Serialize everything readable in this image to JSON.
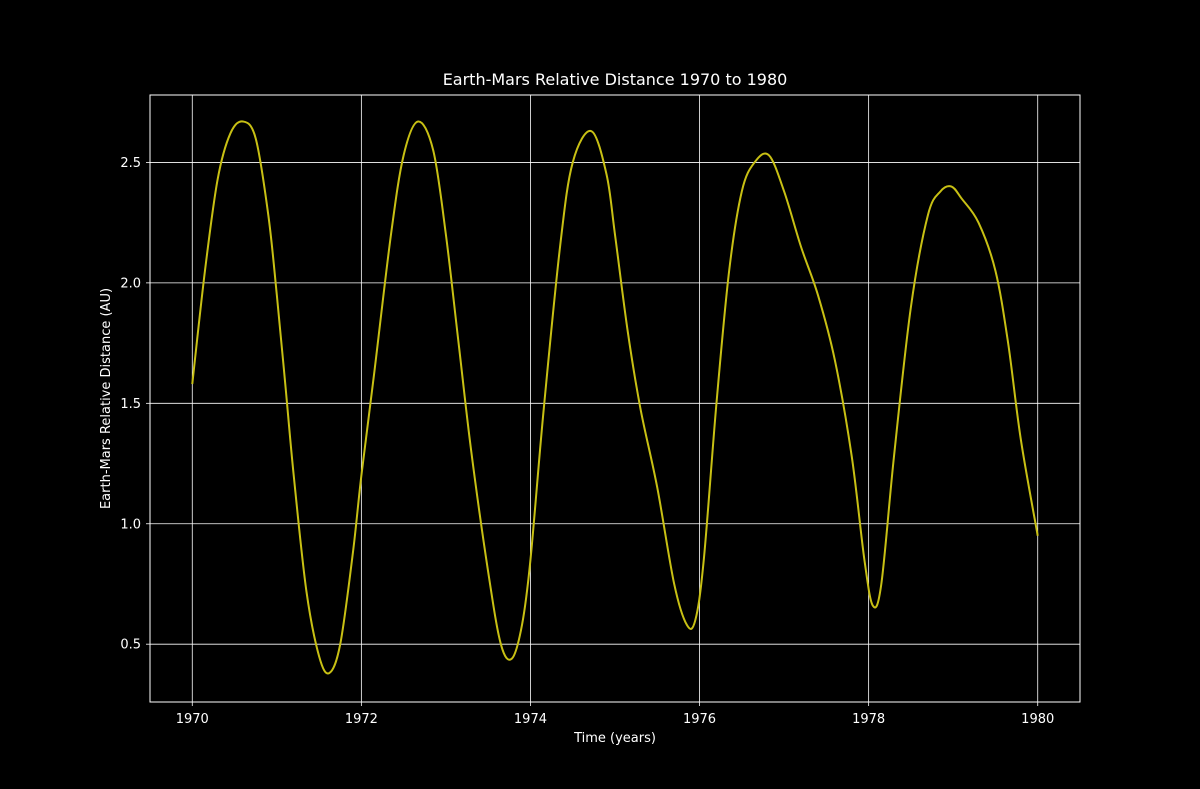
{
  "chart_data": {
    "type": "line",
    "title": "Earth-Mars Relative Distance 1970 to 1980",
    "xlabel": "Time (years)",
    "ylabel": "Earth-Mars Relative Distance (AU)",
    "xlim": [
      1969.5,
      1980.5
    ],
    "ylim": [
      0.26,
      2.78
    ],
    "xticks": [
      1970,
      1972,
      1974,
      1976,
      1978,
      1980
    ],
    "xtick_labels": [
      "1970",
      "1972",
      "1974",
      "1976",
      "1978",
      "1980"
    ],
    "yticks": [
      0.5,
      1.0,
      1.5,
      2.0,
      2.5
    ],
    "ytick_labels": [
      "0.5",
      "1.0",
      "1.5",
      "2.0",
      "2.5"
    ],
    "grid": true,
    "background": "#000000",
    "foreground": "#ffffff",
    "series": [
      {
        "color": "#c8c014",
        "x": [
          1970.0,
          1970.15,
          1970.3,
          1970.45,
          1970.6,
          1970.75,
          1970.9,
          1971.0,
          1971.1,
          1971.2,
          1971.35,
          1971.5,
          1971.62,
          1971.75,
          1971.9,
          1972.0,
          1972.15,
          1972.35,
          1972.5,
          1972.67,
          1972.85,
          1973.0,
          1973.15,
          1973.3,
          1973.5,
          1973.65,
          1973.78,
          1973.9,
          1974.0,
          1974.15,
          1974.35,
          1974.5,
          1974.72,
          1974.9,
          1975.0,
          1975.15,
          1975.3,
          1975.5,
          1975.7,
          1975.85,
          1975.95,
          1976.05,
          1976.2,
          1976.35,
          1976.5,
          1976.65,
          1976.82,
          1977.0,
          1977.2,
          1977.4,
          1977.6,
          1977.8,
          1977.95,
          1978.05,
          1978.15,
          1978.3,
          1978.5,
          1978.7,
          1978.85,
          1978.98,
          1979.1,
          1979.3,
          1979.5,
          1979.65,
          1979.8,
          1980.0
        ],
        "y": [
          1.58,
          2.05,
          2.43,
          2.62,
          2.67,
          2.6,
          2.28,
          1.95,
          1.58,
          1.2,
          0.72,
          0.45,
          0.38,
          0.5,
          0.88,
          1.2,
          1.62,
          2.2,
          2.53,
          2.67,
          2.55,
          2.2,
          1.75,
          1.3,
          0.8,
          0.5,
          0.44,
          0.58,
          0.85,
          1.45,
          2.15,
          2.5,
          2.63,
          2.45,
          2.2,
          1.8,
          1.48,
          1.15,
          0.75,
          0.58,
          0.6,
          0.85,
          1.5,
          2.05,
          2.38,
          2.5,
          2.53,
          2.38,
          2.15,
          1.95,
          1.68,
          1.28,
          0.85,
          0.66,
          0.75,
          1.28,
          1.9,
          2.28,
          2.38,
          2.4,
          2.35,
          2.25,
          2.05,
          1.75,
          1.35,
          0.95
        ]
      }
    ]
  }
}
